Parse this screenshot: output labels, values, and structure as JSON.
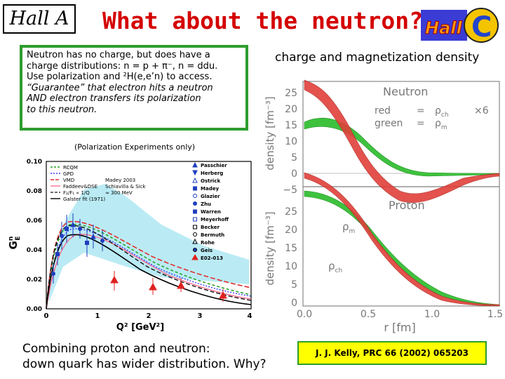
{
  "header": {
    "badge": "Hall A",
    "title": "What about the neutron?",
    "logo_text": "Hall",
    "logo_letter": "C"
  },
  "note": {
    "lines": [
      "Neutron has no charge, but does have a",
      "charge distributions: n = p + π⁻, n = ddu.",
      "Use polarization and ²H(e,e’n) to access.",
      "“Guarantee” that electron hits a neutron",
      "AND electron transfers its polarization",
      "to this neutron."
    ]
  },
  "right_title": "charge and magnetization density",
  "left_plot": {
    "caption": "(Polarization Experiments only)",
    "ylabel": "G",
    "ylabel_sup": "n",
    "ylabel_sub": "E",
    "xlabel": "Q² [GeV²]",
    "y_ticks": [
      "0.10",
      "0.08",
      "0.06",
      "0.04",
      "0.02",
      "0.00"
    ],
    "x_ticks": [
      "0",
      "1",
      "2",
      "3",
      "4"
    ],
    "models": [
      "RCQM",
      "GPD",
      "VMD",
      "Faddeev&DSE",
      "F₂/F₁ ∝ 1/Q",
      "Galster fit (1971)"
    ],
    "model_extra": [
      "Schiavilla & Sick",
      "Madey 2003",
      "≈ 300 MeV"
    ],
    "experiments": [
      "Passchier",
      "Herberg",
      "Ostrick",
      "Madey",
      "Glazier",
      "Zhu",
      "Warren",
      "Meyerhoff",
      "Becker",
      "Bermuth",
      "Rohe",
      "Geis",
      "E02-013"
    ]
  },
  "right_plot": {
    "panels": [
      {
        "name": "Neutron",
        "legend_red": "red",
        "legend_green": "green",
        "eq": "=",
        "rho": "ρ",
        "sub_ch": "ch",
        "sub_m": "m",
        "factor": "×6"
      },
      {
        "name": "Proton",
        "rho": "ρ",
        "sub_m": "m",
        "sub_ch": "ch"
      }
    ],
    "ylabel_top": "density   [fm⁻³]",
    "ylabel_bottom": "density   [fm⁻³]",
    "xlabel": "r     [fm]",
    "y_ticks_top": [
      "25",
      "20",
      "15",
      "10",
      "5",
      "0",
      "−5"
    ],
    "y_ticks_bottom": [
      "25",
      "20",
      "15",
      "10",
      "5",
      "0"
    ],
    "x_ticks": [
      "0.0",
      "0.5",
      "1.0",
      "1.5"
    ]
  },
  "bottom": {
    "line1": "Combining proton and neutron:",
    "line2": "down quark has wider distribution. Why?"
  },
  "citation": "J. J. Kelly, PRC 66 (2002) 065203",
  "colors": {
    "title": "#d40000",
    "green_border": "#2e9c2e",
    "citation_bg": "#ffff00",
    "red_band": "#e0403a",
    "green_band": "#3ec23e"
  }
}
